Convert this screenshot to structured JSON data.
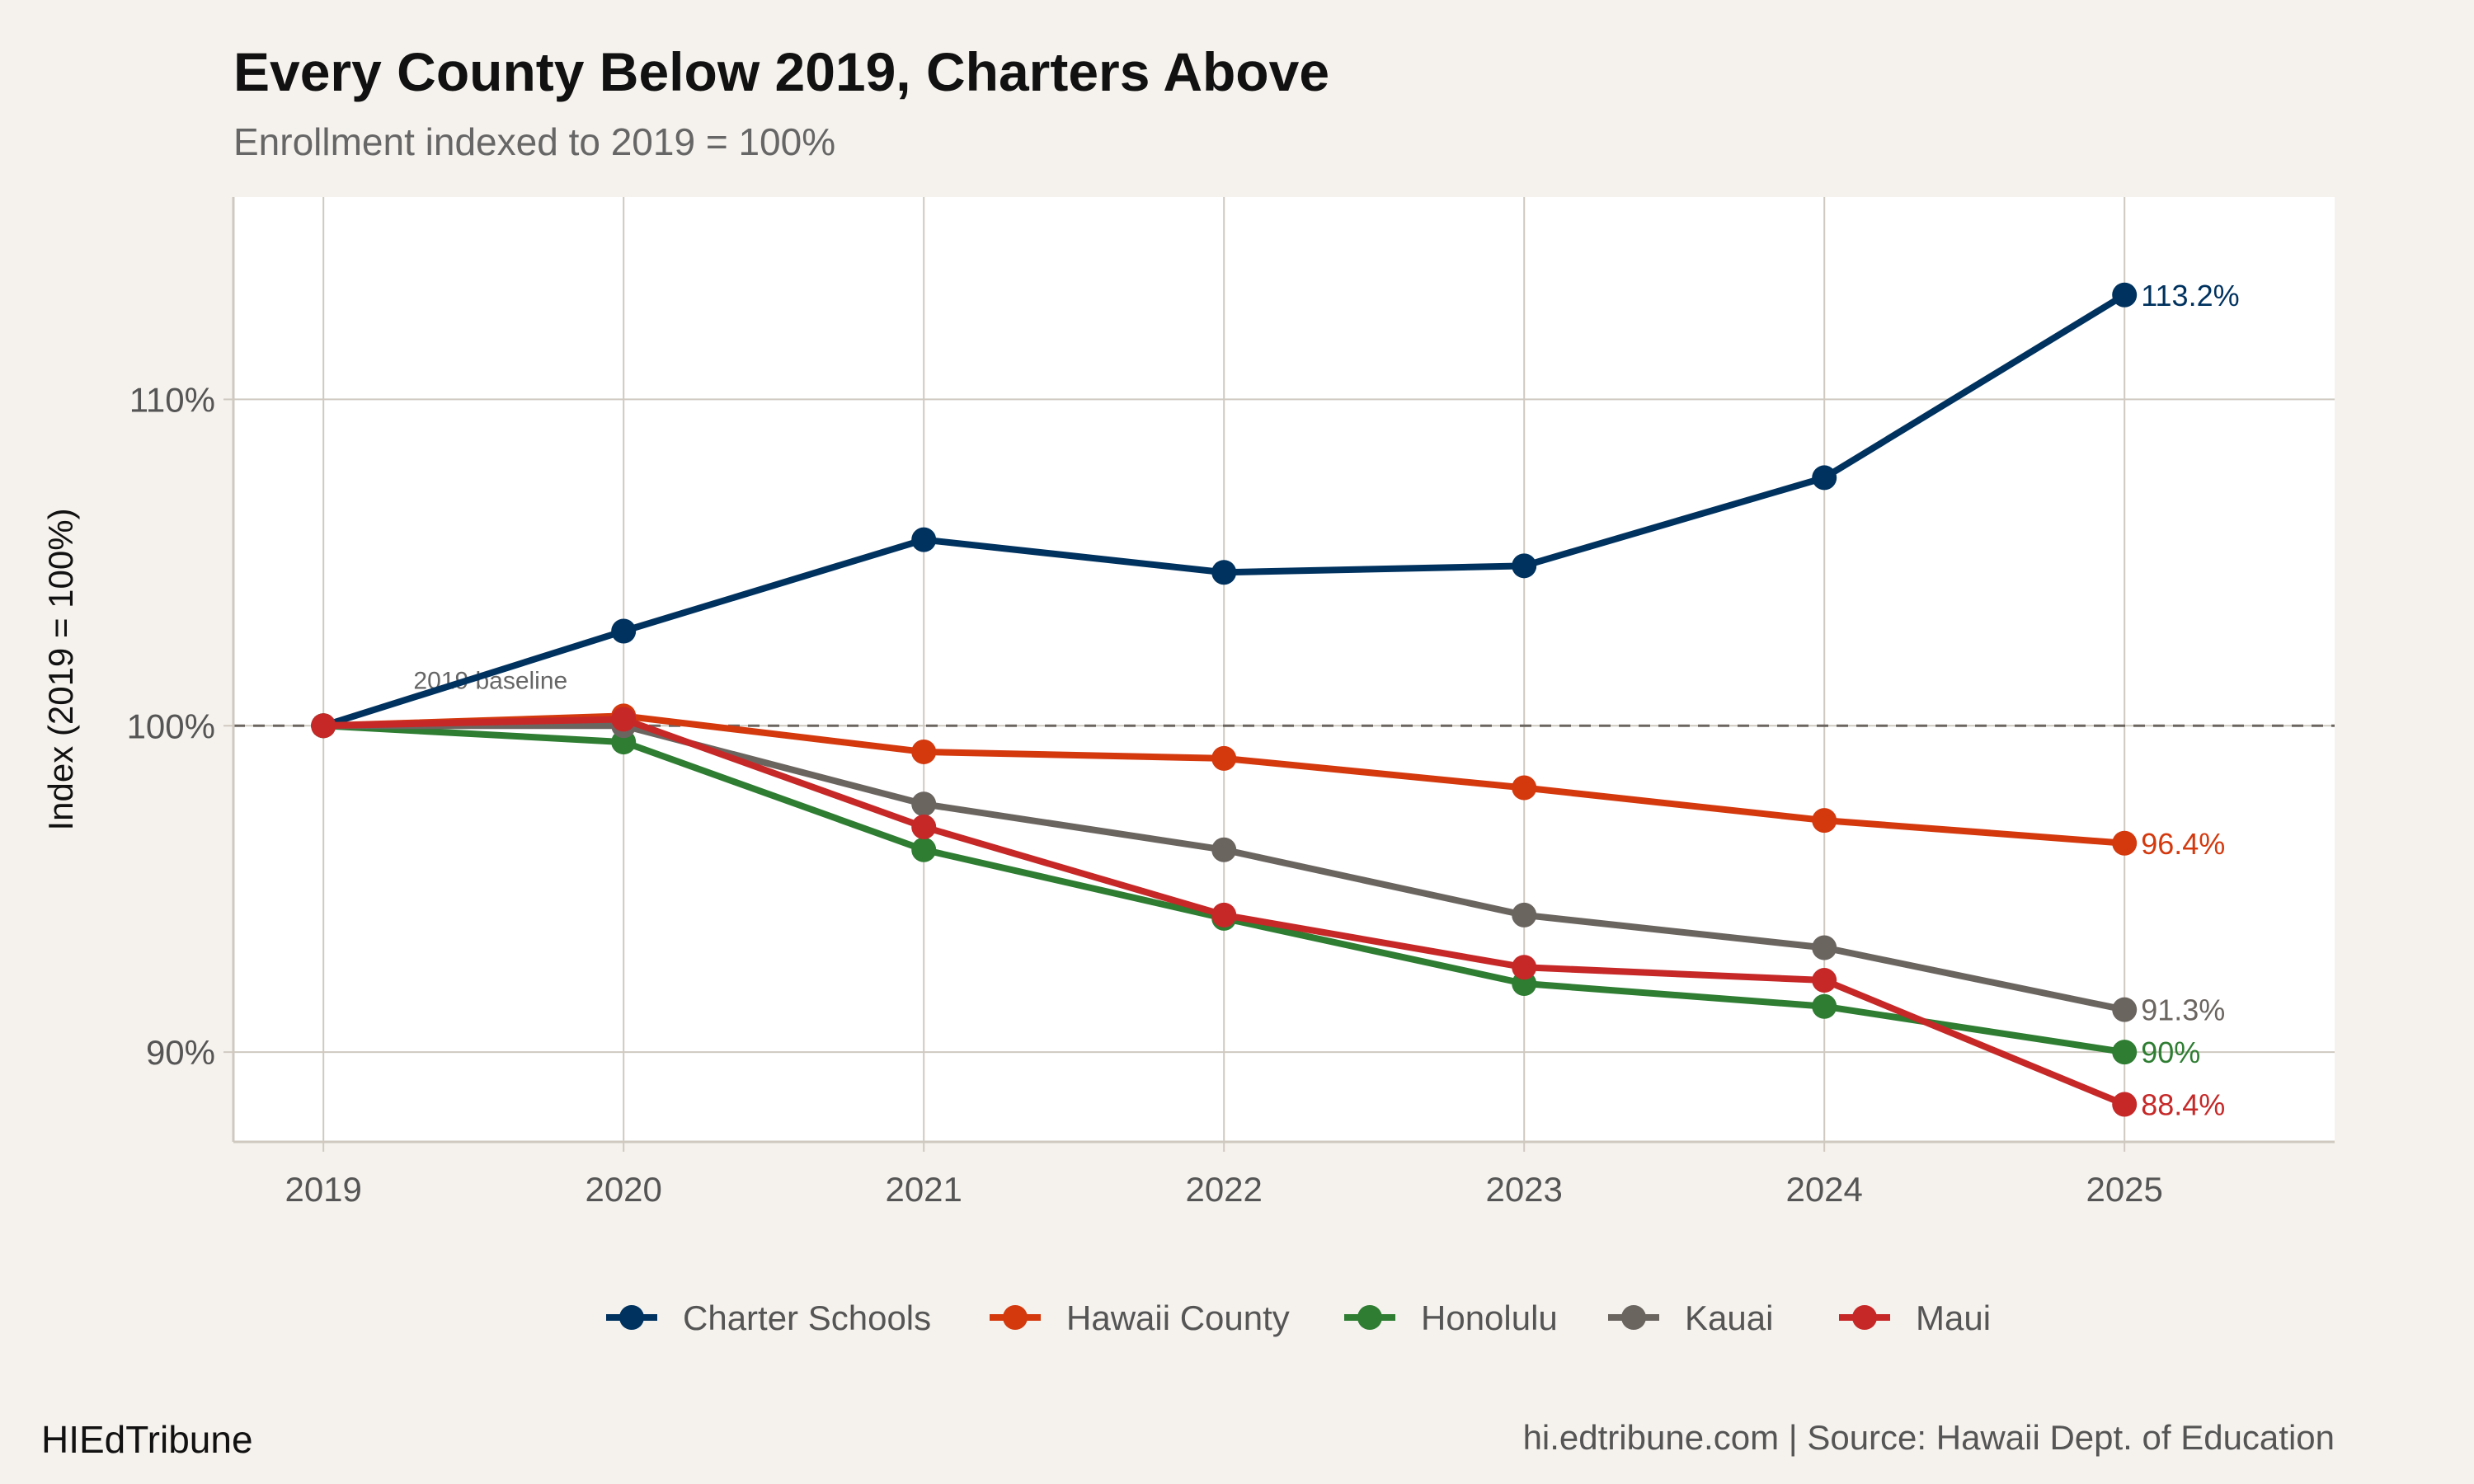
{
  "chart_data": {
    "type": "line",
    "title": "Every County Below 2019, Charters Above",
    "subtitle": "Enrollment indexed to 2019 = 100%",
    "xlabel": "",
    "ylabel": "Index (2019 = 100%)",
    "x": [
      2019,
      2020,
      2021,
      2022,
      2023,
      2024,
      2025
    ],
    "x_tick_labels": [
      "2019",
      "2020",
      "2021",
      "2022",
      "2023",
      "2024",
      "2025"
    ],
    "y_ticks": [
      90,
      100,
      110
    ],
    "y_tick_labels": [
      "90%",
      "100%",
      "110%"
    ],
    "ylim": [
      87.25,
      116.2
    ],
    "xlim": [
      2018.7,
      2025.7
    ],
    "grid": true,
    "legend_position": "bottom",
    "reference_line": {
      "value": 100,
      "style": "dashed",
      "label": "2019 baseline"
    },
    "series": [
      {
        "name": "Charter Schools",
        "color": "#00325f",
        "values": [
          100,
          102.9,
          105.7,
          104.7,
          104.9,
          107.6,
          113.2
        ],
        "end_label": "113.2%"
      },
      {
        "name": "Hawaii County",
        "color": "#d4390e",
        "values": [
          100,
          100.3,
          99.2,
          99.0,
          98.1,
          97.1,
          96.4
        ],
        "end_label": "96.4%"
      },
      {
        "name": "Honolulu",
        "color": "#2e7d32",
        "values": [
          100,
          99.5,
          96.2,
          94.1,
          92.1,
          91.4,
          90.0
        ],
        "end_label": "90%"
      },
      {
        "name": "Kauai",
        "color": "#6b6560",
        "values": [
          100,
          100.0,
          97.6,
          96.2,
          94.2,
          93.2,
          91.3
        ],
        "end_label": "91.3%"
      },
      {
        "name": "Maui",
        "color": "#c62828",
        "values": [
          100,
          100.2,
          96.9,
          94.2,
          92.6,
          92.2,
          88.4
        ],
        "end_label": "88.4%"
      }
    ]
  },
  "footer": {
    "brand": "HIEdTribune",
    "source": "hi.edtribune.com | Source: Hawaii Dept. of Education"
  }
}
